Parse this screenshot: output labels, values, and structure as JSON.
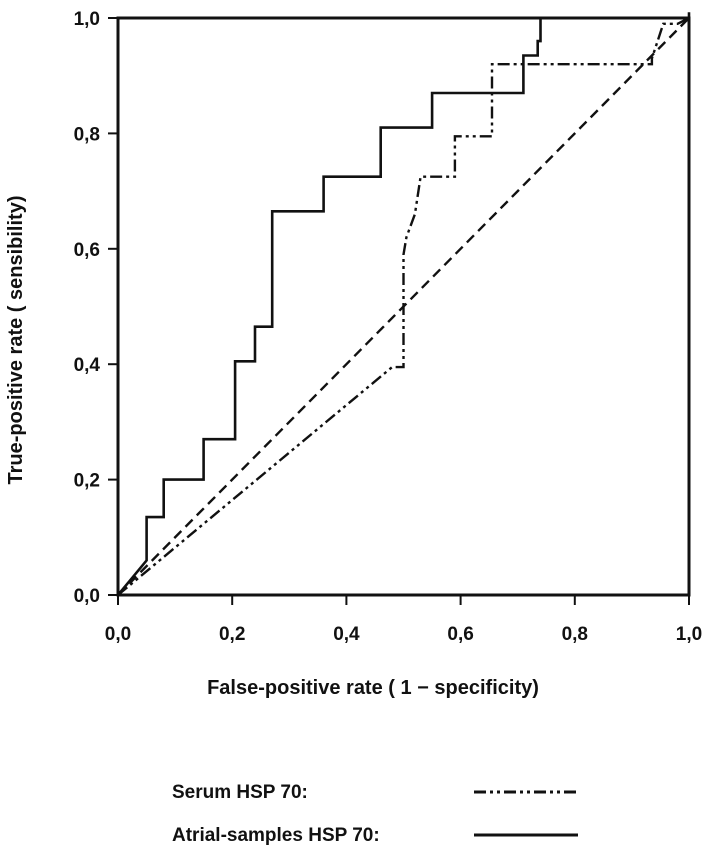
{
  "chart_data": {
    "type": "line",
    "xlabel": "False-positive rate ( 1 − specificity)",
    "ylabel": "True-positive rate ( sensibility)",
    "xlim": [
      0,
      1
    ],
    "ylim": [
      0,
      1
    ],
    "x_ticks": [
      "0,0",
      "0,2",
      "0,4",
      "0,6",
      "0,8",
      "1,0"
    ],
    "y_ticks": [
      "0,0",
      "0,2",
      "0,4",
      "0,6",
      "0,8",
      "1,0"
    ],
    "grid": false,
    "legend_position": "bottom",
    "colors": {
      "ink": "#111111",
      "background": "#ffffff"
    },
    "series": [
      {
        "name": "Serum HSP 70:",
        "style": "dash-dot-dot",
        "x": [
          0,
          0.48,
          0.5,
          0.5,
          0.505,
          0.52,
          0.53,
          0.59,
          0.59,
          0.655,
          0.655,
          0.935,
          0.935,
          0.945,
          0.955,
          0.98,
          1.0
        ],
        "y": [
          0,
          0.395,
          0.395,
          0.59,
          0.62,
          0.66,
          0.725,
          0.725,
          0.795,
          0.795,
          0.92,
          0.92,
          0.93,
          0.96,
          0.99,
          0.99,
          1.0
        ]
      },
      {
        "name": "Atrial-samples HSP 70:",
        "style": "solid",
        "x": [
          0,
          0.05,
          0.05,
          0.08,
          0.08,
          0.15,
          0.15,
          0.205,
          0.205,
          0.24,
          0.24,
          0.27,
          0.27,
          0.36,
          0.36,
          0.46,
          0.46,
          0.55,
          0.55,
          0.71,
          0.71,
          0.735,
          0.735,
          0.74,
          0.74,
          1.0,
          1.0
        ],
        "y": [
          0,
          0.06,
          0.135,
          0.135,
          0.2,
          0.2,
          0.27,
          0.27,
          0.405,
          0.405,
          0.465,
          0.465,
          0.665,
          0.665,
          0.725,
          0.725,
          0.81,
          0.81,
          0.87,
          0.87,
          0.935,
          0.935,
          0.96,
          0.96,
          1.0,
          1.0,
          1.01
        ]
      },
      {
        "style": "dashed",
        "x": [
          0,
          1
        ],
        "y": [
          0,
          1
        ]
      }
    ]
  }
}
